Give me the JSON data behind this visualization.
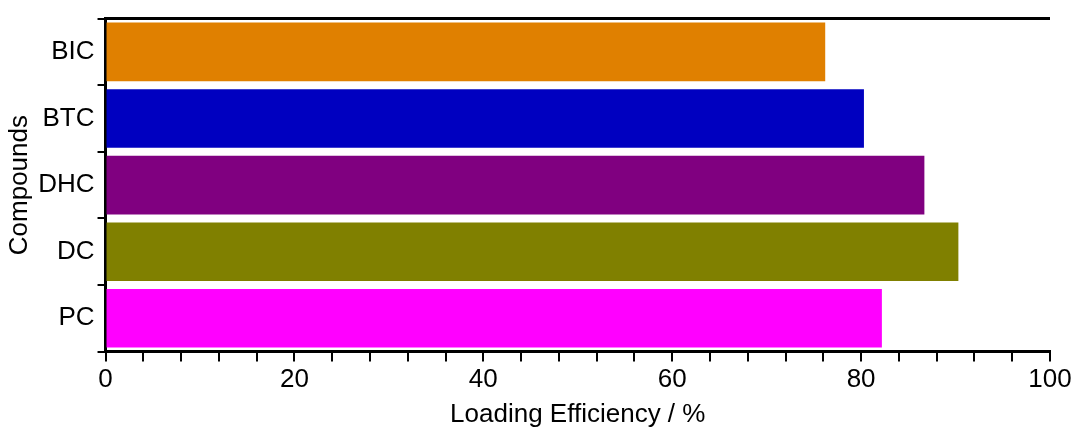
{
  "chart_data": {
    "type": "bar",
    "orientation": "horizontal",
    "xlabel": "Loading Efficiency / %",
    "ylabel": "Compounds",
    "categories": [
      "BIC",
      "BTC",
      "DHC",
      "DC",
      "PC"
    ],
    "values": [
      76.2,
      80.3,
      86.7,
      90.3,
      82.2
    ],
    "colors": [
      "#e08000",
      "#0000c0",
      "#800080",
      "#808000",
      "#ff00ff"
    ],
    "xlim": [
      0,
      100
    ],
    "xticks": [
      0,
      {
        "value": 4,
        "label": null
      },
      {
        "value": 8,
        "label": null
      },
      {
        "value": 12,
        "label": null
      },
      {
        "value": 16,
        "label": null
      },
      20,
      {
        "value": 24,
        "label": null
      },
      {
        "value": 28,
        "label": null
      },
      {
        "value": 32,
        "label": null
      },
      {
        "value": 36,
        "label": null
      },
      40,
      {
        "value": 44,
        "label": null
      },
      {
        "value": 48,
        "label": null
      },
      {
        "value": 52,
        "label": null
      },
      {
        "value": 56,
        "label": null
      },
      60,
      {
        "value": 64,
        "label": null
      },
      {
        "value": 68,
        "label": null
      },
      {
        "value": 72,
        "label": null
      },
      {
        "value": 76,
        "label": null
      },
      80,
      {
        "value": 84,
        "label": null
      },
      {
        "value": 88,
        "label": null
      },
      {
        "value": 92,
        "label": null
      },
      {
        "value": 96,
        "label": null
      },
      100
    ],
    "grid": false,
    "legend": false
  }
}
